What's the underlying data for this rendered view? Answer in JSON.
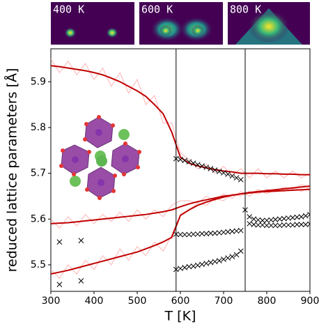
{
  "chart_data": {
    "type": "line",
    "xlabel": "T [K]",
    "ylabel": "reduced lattice parameters [Å]",
    "xlim": [
      300,
      900
    ],
    "xticks": [
      300,
      400,
      500,
      600,
      700,
      800,
      900
    ],
    "ylim": [
      5.442,
      5.972
    ],
    "yticks": [
      5.5,
      5.6,
      5.7,
      5.8,
      5.9
    ],
    "vlines": [
      590,
      750
    ],
    "vline_color": "#000000",
    "annotations": [
      "400 K",
      "600 K",
      "800 K"
    ],
    "x": [
      300,
      320,
      340,
      360,
      380,
      400,
      420,
      440,
      460,
      480,
      500,
      520,
      540,
      560,
      580,
      600,
      620,
      640,
      660,
      680,
      700,
      720,
      740,
      760,
      780,
      800,
      820,
      840,
      860,
      880,
      900
    ],
    "series": [
      {
        "color": "#ffb3b3",
        "width": 1,
        "values": [
          5.95,
          5.92,
          5.945,
          5.915,
          5.94,
          5.905,
          5.93,
          5.89,
          5.92,
          5.875,
          5.905,
          5.85,
          5.87,
          5.81,
          5.81,
          5.745,
          5.73,
          5.71,
          5.72,
          5.7,
          5.715,
          5.695,
          5.71,
          5.69,
          5.71,
          5.69,
          5.705,
          5.69,
          5.705,
          5.69,
          5.7
        ]
      },
      {
        "color": "#ffb3b3",
        "width": 1,
        "values": [
          5.6,
          5.58,
          5.605,
          5.585,
          5.61,
          5.59,
          5.61,
          5.595,
          5.615,
          5.595,
          5.62,
          5.6,
          5.62,
          5.605,
          5.63,
          5.64,
          5.64,
          5.635,
          5.65,
          5.64,
          5.655,
          5.645,
          5.66,
          5.65,
          5.665,
          5.655,
          5.665,
          5.66,
          5.67,
          5.66,
          5.67
        ]
      },
      {
        "color": "#ffb3b3",
        "width": 1,
        "values": [
          5.49,
          5.47,
          5.5,
          5.48,
          5.51,
          5.49,
          5.52,
          5.5,
          5.535,
          5.51,
          5.54,
          5.52,
          5.55,
          5.53,
          5.565,
          5.61,
          5.62,
          5.635,
          5.63,
          5.645,
          5.64,
          5.655,
          5.65,
          5.66,
          5.655,
          5.665,
          5.66,
          5.67,
          5.665,
          5.675,
          5.67
        ]
      },
      {
        "color": "#c00000",
        "width": 2,
        "values": [
          5.935,
          5.933,
          5.93,
          5.927,
          5.924,
          5.92,
          5.915,
          5.908,
          5.9,
          5.89,
          5.88,
          5.868,
          5.85,
          5.83,
          5.79,
          5.735,
          5.722,
          5.716,
          5.712,
          5.708,
          5.705,
          5.703,
          5.7,
          5.7,
          5.7,
          5.699,
          5.699,
          5.698,
          5.698,
          5.697,
          5.697
        ]
      },
      {
        "color": "#c00000",
        "width": 2,
        "values": [
          5.59,
          5.591,
          5.592,
          5.594,
          5.596,
          5.598,
          5.6,
          5.602,
          5.604,
          5.606,
          5.608,
          5.61,
          5.613,
          5.616,
          5.62,
          5.627,
          5.633,
          5.638,
          5.642,
          5.646,
          5.65,
          5.652,
          5.655,
          5.657,
          5.659,
          5.66,
          5.661,
          5.662,
          5.663,
          5.664,
          5.665
        ]
      },
      {
        "color": "#c00000",
        "width": 2,
        "values": [
          5.48,
          5.484,
          5.488,
          5.493,
          5.498,
          5.503,
          5.508,
          5.513,
          5.518,
          5.523,
          5.528,
          5.535,
          5.542,
          5.55,
          5.56,
          5.608,
          5.62,
          5.63,
          5.637,
          5.643,
          5.648,
          5.652,
          5.655,
          5.658,
          5.66,
          5.662,
          5.664,
          5.666,
          5.668,
          5.67,
          5.672
        ]
      },
      {
        "color": "#000000",
        "marker": "x",
        "x": [
          320,
          370,
          320,
          370,
          590,
          600,
          610,
          620,
          630,
          640,
          650,
          660,
          670,
          680,
          690,
          700,
          710,
          720,
          730,
          740,
          590,
          600,
          610,
          620,
          630,
          640,
          650,
          660,
          670,
          680,
          690,
          700,
          710,
          720,
          730,
          740,
          590,
          600,
          610,
          620,
          630,
          640,
          650,
          660,
          670,
          680,
          690,
          700,
          710,
          720,
          730,
          740,
          750,
          760,
          770,
          780,
          790,
          800,
          810,
          820,
          830,
          840,
          850,
          860,
          870,
          880,
          890,
          900,
          760,
          770,
          780,
          790,
          800,
          810,
          820,
          830,
          840,
          850,
          860,
          870,
          880,
          890,
          900
        ],
        "values": [
          5.55,
          5.553,
          5.457,
          5.465,
          5.732,
          5.73,
          5.728,
          5.725,
          5.722,
          5.719,
          5.716,
          5.713,
          5.71,
          5.707,
          5.704,
          5.701,
          5.698,
          5.694,
          5.69,
          5.686,
          5.567,
          5.566,
          5.566,
          5.566,
          5.567,
          5.567,
          5.568,
          5.568,
          5.569,
          5.569,
          5.57,
          5.571,
          5.572,
          5.573,
          5.574,
          5.575,
          5.49,
          5.492,
          5.494,
          5.496,
          5.497,
          5.499,
          5.501,
          5.503,
          5.505,
          5.507,
          5.509,
          5.512,
          5.515,
          5.518,
          5.522,
          5.53,
          5.62,
          5.605,
          5.6,
          5.598,
          5.597,
          5.597,
          5.598,
          5.599,
          5.6,
          5.601,
          5.602,
          5.603,
          5.604,
          5.605,
          5.607,
          5.61,
          5.59,
          5.588,
          5.587,
          5.587,
          5.586,
          5.586,
          5.586,
          5.586,
          5.587,
          5.587,
          5.587,
          5.588,
          5.588,
          5.588,
          5.589
        ]
      }
    ]
  }
}
